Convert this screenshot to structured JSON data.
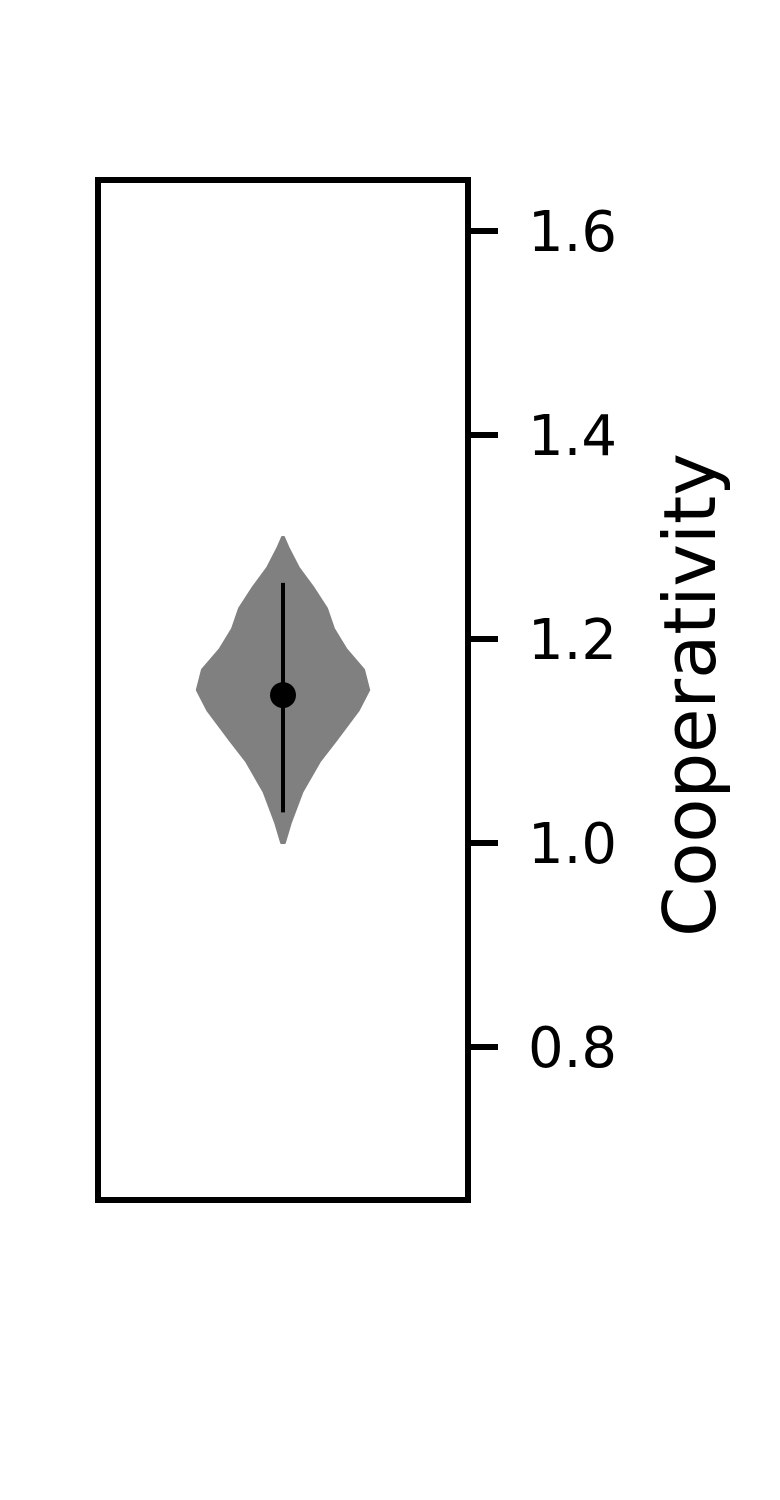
{
  "chart_data": {
    "type": "violin",
    "title": "",
    "xlabel": "",
    "ylabel": "Cooperativity",
    "y_axis_side": "right",
    "ylim": [
      0.65,
      1.65
    ],
    "yticks": [
      0.8,
      1.0,
      1.2,
      1.4,
      1.6
    ],
    "ytick_labels": [
      "0.8",
      "1.0",
      "1.2",
      "1.4",
      "1.6"
    ],
    "grid": false,
    "series": [
      {
        "min": 1.0,
        "max": 1.3,
        "whisker_low": 1.03,
        "whisker_high": 1.255,
        "center": 1.145,
        "density": [
          [
            1.0,
            0.02
          ],
          [
            1.02,
            0.09
          ],
          [
            1.05,
            0.22
          ],
          [
            1.08,
            0.42
          ],
          [
            1.1,
            0.6
          ],
          [
            1.13,
            0.86
          ],
          [
            1.15,
            0.98
          ],
          [
            1.17,
            0.92
          ],
          [
            1.19,
            0.72
          ],
          [
            1.21,
            0.58
          ],
          [
            1.23,
            0.5
          ],
          [
            1.25,
            0.35
          ],
          [
            1.27,
            0.18
          ],
          [
            1.29,
            0.06
          ],
          [
            1.3,
            0.01
          ]
        ]
      }
    ],
    "colors": {
      "violin_fill": "#808080",
      "marker": "#000000",
      "axes": "#000000"
    }
  }
}
